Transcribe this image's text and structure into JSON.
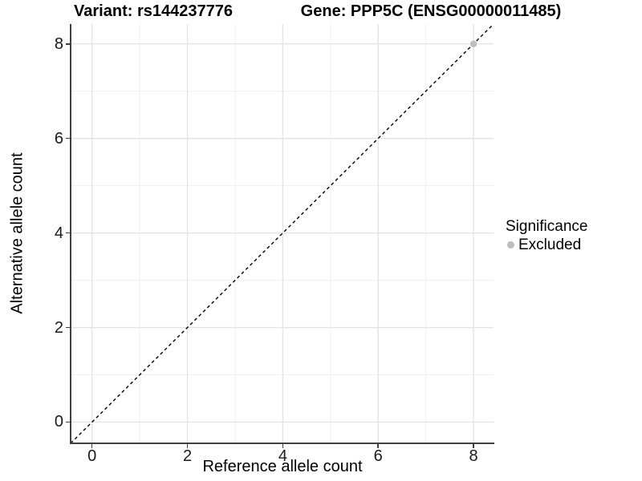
{
  "chart_data": {
    "type": "scatter",
    "title_left": "Variant: rs144237776",
    "title_right": "Gene: PPP5C (ENSG00000011485)",
    "xlabel": "Reference allele count",
    "ylabel": "Alternative allele count",
    "xlim": [
      -0.45,
      8.42
    ],
    "ylim": [
      -0.45,
      8.42
    ],
    "x_ticks": [
      0,
      2,
      4,
      6,
      8
    ],
    "y_ticks": [
      0,
      2,
      4,
      6,
      8
    ],
    "x_minor_ticks": [
      1,
      3,
      5,
      7
    ],
    "y_minor_ticks": [
      1,
      3,
      5,
      7
    ],
    "grid": {
      "major_color": "#e3e3e3",
      "minor_color": "#f1f1f1",
      "background": "#ffffff"
    },
    "axis_color": "#404040",
    "reference_line": {
      "type": "identity",
      "style": "dashed",
      "color": "#000000"
    },
    "series": [
      {
        "name": "Excluded",
        "color": "#bdbdbd",
        "points": [
          [
            8,
            8
          ]
        ]
      }
    ],
    "legend": {
      "position": "right",
      "title": "Significance",
      "items": [
        {
          "label": "Excluded",
          "color": "#bdbdbd"
        }
      ]
    }
  }
}
